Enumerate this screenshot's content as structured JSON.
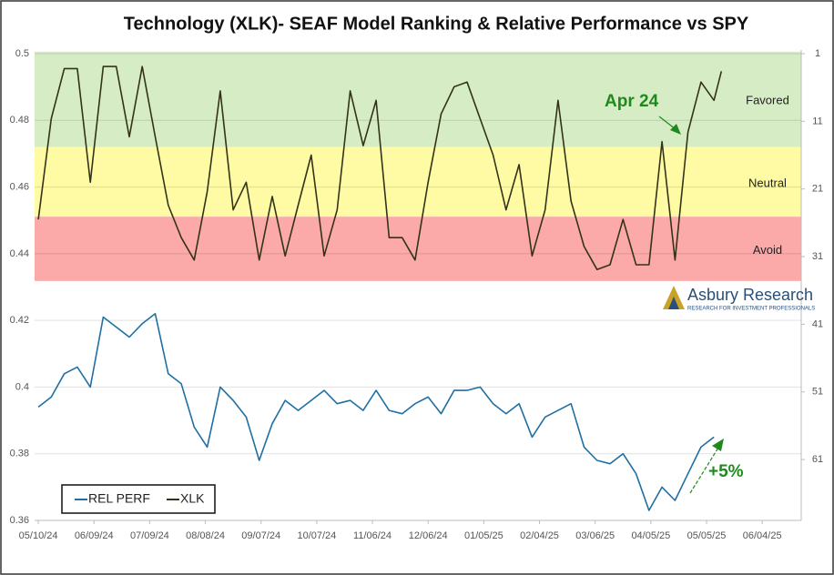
{
  "chart_data": {
    "type": "line",
    "title": "Technology (XLK)- SEAF Model Ranking & Relative Performance vs SPY",
    "x": [
      "05/10/24",
      "05/17/24",
      "05/24/24",
      "05/31/24",
      "06/07/24",
      "06/14/24",
      "06/21/24",
      "06/28/24",
      "07/05/24",
      "07/12/24",
      "07/19/24",
      "07/26/24",
      "08/02/24",
      "08/09/24",
      "08/16/24",
      "08/23/24",
      "08/30/24",
      "09/06/24",
      "09/13/24",
      "09/20/24",
      "09/27/24",
      "10/04/24",
      "10/11/24",
      "10/18/24",
      "10/25/24",
      "11/01/24",
      "11/08/24",
      "11/15/24",
      "11/22/24",
      "11/29/24",
      "12/06/24",
      "12/13/24",
      "12/20/24",
      "12/27/24",
      "01/03/25",
      "01/10/25",
      "01/17/25",
      "01/24/25",
      "01/31/25",
      "02/07/25",
      "02/14/25",
      "02/21/25",
      "02/28/25",
      "03/07/25",
      "03/14/25",
      "03/21/25",
      "03/28/25",
      "04/04/25",
      "04/11/25",
      "04/18/25",
      "04/25/25",
      "05/02/25",
      "05/09/25",
      "05/13/25"
    ],
    "xlim": [
      "05/08/24",
      "06/25/25"
    ],
    "xticks": [
      "05/10/24",
      "06/09/24",
      "07/09/24",
      "08/08/24",
      "09/07/24",
      "10/07/24",
      "11/06/24",
      "12/06/24",
      "01/05/25",
      "02/04/25",
      "03/06/25",
      "04/05/25",
      "05/05/25",
      "06/04/25"
    ],
    "ylim": [
      0.36,
      0.5
    ],
    "yticks": [
      0.36,
      0.38,
      0.4,
      0.42,
      0.44,
      0.46,
      0.48,
      0.5
    ],
    "y2lim": [
      70,
      1
    ],
    "y2ticks": [
      1,
      11,
      21,
      31,
      41,
      51,
      61
    ],
    "grid": true,
    "legend": "bottom-left",
    "series": [
      {
        "name": "REL PERF",
        "color": "#1f6fa3",
        "axis": "y",
        "values": [
          0.394,
          0.397,
          0.404,
          0.406,
          0.4,
          0.421,
          0.418,
          0.415,
          0.419,
          0.422,
          0.404,
          0.401,
          0.388,
          0.382,
          0.4,
          0.396,
          0.391,
          0.378,
          0.389,
          0.396,
          0.393,
          0.396,
          0.399,
          0.395,
          0.396,
          0.393,
          0.399,
          0.393,
          0.392,
          0.395,
          0.397,
          0.392,
          0.399,
          0.399,
          0.4,
          0.395,
          0.392,
          0.395,
          0.385,
          0.391,
          0.393,
          0.395,
          0.382,
          0.378,
          0.377,
          0.38,
          0.374,
          0.363,
          0.37,
          0.366,
          0.374,
          0.382,
          0.385,
          null
        ]
      },
      {
        "name": "XLK",
        "color": "#33331a",
        "axis": "y2",
        "values": [
          25.5,
          10.6,
          3.2,
          3.2,
          20,
          2.9,
          2.9,
          13.3,
          2.9,
          13.3,
          23.4,
          28.2,
          31.5,
          21.4,
          6.5,
          24.1,
          20,
          31.5,
          22.1,
          30.9,
          23.4,
          16,
          30.9,
          24.1,
          6.5,
          14.6,
          7.9,
          28.2,
          28.2,
          31.5,
          20,
          9.9,
          5.9,
          5.2,
          10.6,
          16,
          24.1,
          17.4,
          30.9,
          24.1,
          7.9,
          22.8,
          29.5,
          32.9,
          32.2,
          25.5,
          32.2,
          32.2,
          14,
          31.5,
          12.6,
          5.2,
          7.9,
          3.6
        ]
      }
    ],
    "bands": [
      {
        "name": "Favored",
        "range": [
          0.7,
          14.8
        ],
        "color": "#d6ecc4"
      },
      {
        "name": "Neutral",
        "range": [
          14.8,
          25.1
        ],
        "color": "#fffba4"
      },
      {
        "name": "Avoid",
        "range": [
          25.1,
          34.6
        ],
        "color": "#fba9a9"
      }
    ],
    "annotations": [
      "Apr 24",
      "+5%"
    ]
  },
  "logo": {
    "name": "Asbury Research",
    "tagline": "RESEARCH FOR INVESTMENT PROFESSIONALS"
  }
}
